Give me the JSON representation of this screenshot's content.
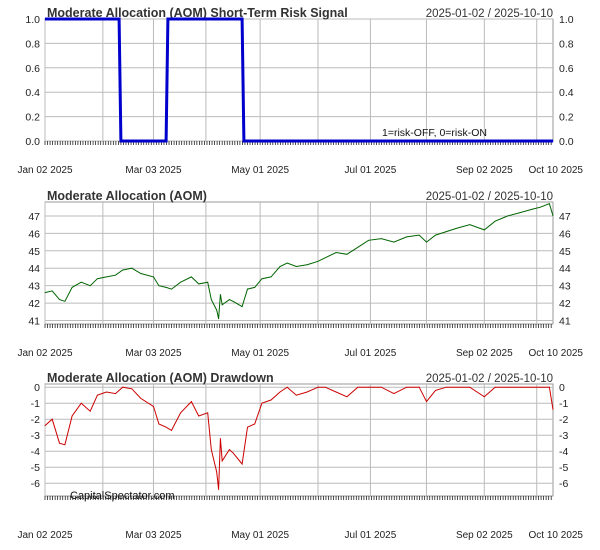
{
  "chart_data": [
    {
      "type": "line",
      "title": "Moderate Allocation (AOM) Short-Term Risk Signal",
      "date_range": "2025-01-02 / 2025-10-10",
      "annotation": "1=risk-OFF, 0=risk-ON",
      "ylim": [
        0,
        1
      ],
      "yticks": [
        "0.0",
        "0.2",
        "0.4",
        "0.6",
        "0.8",
        "1.0"
      ],
      "x_tick_labels": [
        "Jan 02 2025",
        "Mar 03 2025",
        "May 01 2025",
        "Jul 01 2025",
        "Sep 02 2025",
        "Oct 10 2025"
      ],
      "grid": true,
      "color": "#0000cc",
      "series": [
        {
          "x": [
            "2025-01-02",
            "2025-02-12",
            "2025-02-13",
            "2025-03-10",
            "2025-03-11",
            "2025-04-21",
            "2025-04-22",
            "2025-10-10"
          ],
          "y": [
            1,
            1,
            0,
            0,
            1,
            1,
            0,
            0
          ]
        }
      ]
    },
    {
      "type": "line",
      "title": "Moderate Allocation (AOM)",
      "date_range": "2025-01-02 / 2025-10-10",
      "ylim": [
        40.8,
        47.8
      ],
      "yticks": [
        "41",
        "42",
        "43",
        "44",
        "45",
        "46",
        "47"
      ],
      "x_tick_labels": [
        "Jan 02 2025",
        "Mar 03 2025",
        "May 01 2025",
        "Jul 01 2025",
        "Sep 02 2025",
        "Oct 10 2025"
      ],
      "grid": true,
      "color": "#006400",
      "series": [
        {
          "x": [
            "2025-01-02",
            "2025-01-06",
            "2025-01-10",
            "2025-01-13",
            "2025-01-17",
            "2025-01-22",
            "2025-01-27",
            "2025-01-31",
            "2025-02-05",
            "2025-02-10",
            "2025-02-14",
            "2025-02-19",
            "2025-02-24",
            "2025-03-03",
            "2025-03-06",
            "2025-03-10",
            "2025-03-13",
            "2025-03-18",
            "2025-03-24",
            "2025-03-28",
            "2025-04-02",
            "2025-04-04",
            "2025-04-07",
            "2025-04-08",
            "2025-04-09",
            "2025-04-10",
            "2025-04-14",
            "2025-04-16",
            "2025-04-21",
            "2025-04-24",
            "2025-04-28",
            "2025-05-02",
            "2025-05-07",
            "2025-05-12",
            "2025-05-16",
            "2025-05-21",
            "2025-05-27",
            "2025-06-02",
            "2025-06-06",
            "2025-06-12",
            "2025-06-18",
            "2025-06-24",
            "2025-06-30",
            "2025-07-07",
            "2025-07-14",
            "2025-07-21",
            "2025-07-28",
            "2025-08-01",
            "2025-08-06",
            "2025-08-12",
            "2025-08-18",
            "2025-08-25",
            "2025-09-02",
            "2025-09-08",
            "2025-09-15",
            "2025-09-22",
            "2025-09-29",
            "2025-10-03",
            "2025-10-08",
            "2025-10-10"
          ],
          "y": [
            42.6,
            42.7,
            42.2,
            42.1,
            42.9,
            43.2,
            43.0,
            43.4,
            43.5,
            43.6,
            43.9,
            44.0,
            43.7,
            43.5,
            43.0,
            42.9,
            42.8,
            43.2,
            43.5,
            43.1,
            43.2,
            42.2,
            41.6,
            41.1,
            42.5,
            41.9,
            42.2,
            42.1,
            41.8,
            42.8,
            42.9,
            43.4,
            43.5,
            44.1,
            44.3,
            44.1,
            44.2,
            44.4,
            44.6,
            44.9,
            44.8,
            45.2,
            45.6,
            45.7,
            45.5,
            45.8,
            45.9,
            45.5,
            45.9,
            46.1,
            46.3,
            46.5,
            46.2,
            46.7,
            47.0,
            47.2,
            47.4,
            47.5,
            47.7,
            47.0
          ]
        }
      ]
    },
    {
      "type": "line",
      "title": "Moderate Allocation (AOM) Drawdown",
      "date_range": "2025-01-02 / 2025-10-10",
      "watermark": "CapitalSpectator.com",
      "ylim": [
        -6.8,
        0.2
      ],
      "yticks": [
        "0",
        "-1",
        "-2",
        "-3",
        "-4",
        "-5",
        "-6"
      ],
      "x_tick_labels": [
        "Jan 02 2025",
        "Mar 03 2025",
        "May 01 2025",
        "Jul 01 2025",
        "Sep 02 2025",
        "Oct 10 2025"
      ],
      "grid": true,
      "color": "#cc0000",
      "series": [
        {
          "x": [
            "2025-01-02",
            "2025-01-06",
            "2025-01-10",
            "2025-01-13",
            "2025-01-17",
            "2025-01-22",
            "2025-01-27",
            "2025-01-31",
            "2025-02-05",
            "2025-02-10",
            "2025-02-14",
            "2025-02-19",
            "2025-02-24",
            "2025-03-03",
            "2025-03-06",
            "2025-03-10",
            "2025-03-13",
            "2025-03-18",
            "2025-03-24",
            "2025-03-28",
            "2025-04-02",
            "2025-04-04",
            "2025-04-07",
            "2025-04-08",
            "2025-04-09",
            "2025-04-10",
            "2025-04-14",
            "2025-04-16",
            "2025-04-21",
            "2025-04-24",
            "2025-04-28",
            "2025-05-02",
            "2025-05-07",
            "2025-05-12",
            "2025-05-16",
            "2025-05-21",
            "2025-05-27",
            "2025-06-02",
            "2025-06-06",
            "2025-06-12",
            "2025-06-18",
            "2025-06-24",
            "2025-06-30",
            "2025-07-07",
            "2025-07-14",
            "2025-07-21",
            "2025-07-28",
            "2025-08-01",
            "2025-08-06",
            "2025-08-12",
            "2025-08-18",
            "2025-08-25",
            "2025-09-02",
            "2025-09-08",
            "2025-09-15",
            "2025-09-22",
            "2025-09-29",
            "2025-10-03",
            "2025-10-08",
            "2025-10-10"
          ],
          "y": [
            -2.4,
            -2.0,
            -3.5,
            -3.6,
            -1.8,
            -1.0,
            -1.5,
            -0.5,
            -0.3,
            -0.4,
            0.0,
            -0.1,
            -0.7,
            -1.2,
            -2.3,
            -2.5,
            -2.7,
            -1.6,
            -0.9,
            -1.8,
            -1.6,
            -3.9,
            -5.3,
            -6.4,
            -3.2,
            -4.6,
            -3.9,
            -4.1,
            -4.8,
            -2.5,
            -2.3,
            -1.0,
            -0.8,
            -0.3,
            0.0,
            -0.5,
            -0.3,
            0.0,
            0.0,
            -0.3,
            -0.6,
            0.0,
            0.0,
            0.0,
            -0.4,
            0.0,
            0.0,
            -0.9,
            -0.2,
            0.0,
            0.0,
            0.0,
            -0.6,
            0.0,
            0.0,
            0.0,
            0.0,
            0.0,
            0.0,
            -1.4
          ]
        }
      ]
    }
  ]
}
